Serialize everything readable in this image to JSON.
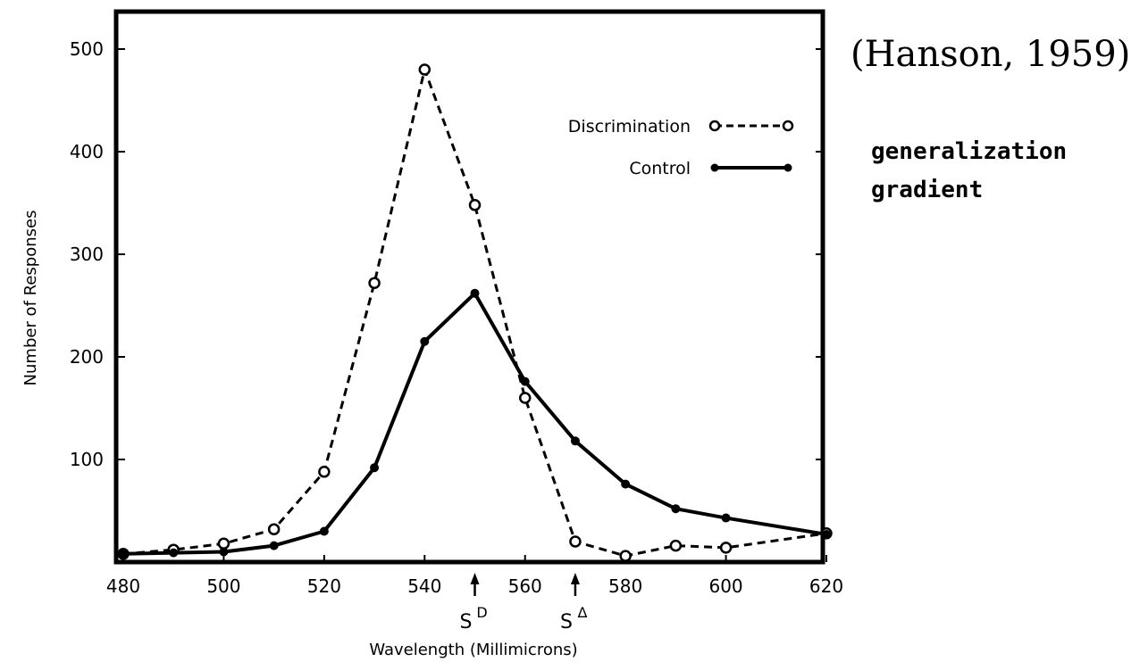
{
  "chart_data": {
    "type": "line",
    "xlabel": "Wavelength (Millimicrons)",
    "ylabel": "Number of Responses",
    "xlim": [
      480,
      620
    ],
    "ylim": [
      0,
      500
    ],
    "xticks": [
      480,
      500,
      520,
      540,
      560,
      580,
      600,
      620
    ],
    "yticks": [
      100,
      200,
      300,
      400,
      500
    ],
    "grid": false,
    "legend_position": "top-right",
    "series": [
      {
        "name": "Discrimination",
        "style": "dashed-open-circle",
        "x": [
          480,
          490,
          500,
          510,
          520,
          530,
          540,
          550,
          560,
          570,
          580,
          590,
          600,
          620
        ],
        "y": [
          8,
          12,
          18,
          32,
          88,
          272,
          480,
          348,
          160,
          20,
          6,
          16,
          14,
          28
        ]
      },
      {
        "name": "Control",
        "style": "solid-filled-dot",
        "x": [
          480,
          490,
          500,
          510,
          520,
          530,
          540,
          550,
          560,
          570,
          580,
          590,
          600,
          620
        ],
        "y": [
          8,
          9,
          10,
          16,
          30,
          92,
          215,
          262,
          176,
          118,
          76,
          52,
          43,
          27
        ]
      }
    ],
    "markers": [
      {
        "x": 550,
        "label": "S",
        "sup": "D"
      },
      {
        "x": 570,
        "label": "S",
        "sup": "Δ"
      }
    ]
  },
  "annotations": {
    "citation": "(Hanson, 1959)",
    "line1": "generalization",
    "line2": "gradient"
  },
  "colors": {
    "ink": "#000000",
    "background": "#ffffff"
  }
}
